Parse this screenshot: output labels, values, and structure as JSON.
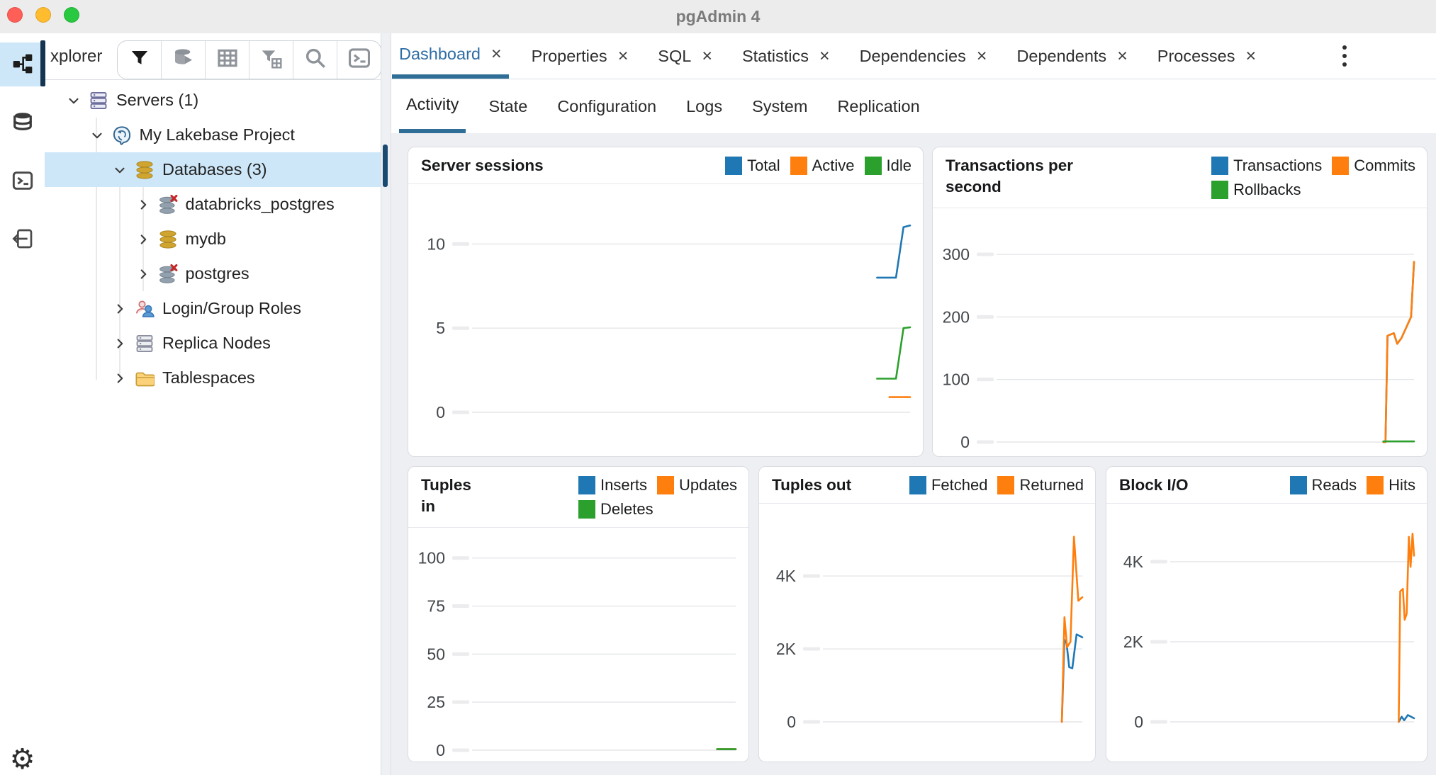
{
  "window": {
    "title": "pgAdmin 4"
  },
  "rail": {
    "top_icons": [
      {
        "name": "object-explorer-icon",
        "active": true
      },
      {
        "name": "rail-database-icon",
        "active": false
      },
      {
        "name": "rail-terminal-icon",
        "active": false
      },
      {
        "name": "rail-extension-icon",
        "active": false
      }
    ],
    "bottom_icon": {
      "name": "gear-icon",
      "glyph": "⚙"
    }
  },
  "explorer": {
    "header_label": "xplorer",
    "toolbar": [
      {
        "name": "filter-icon"
      },
      {
        "name": "database-play-icon"
      },
      {
        "name": "grid-icon"
      },
      {
        "name": "filter-grid-icon"
      },
      {
        "name": "search-icon"
      },
      {
        "name": "terminal-box-icon"
      }
    ],
    "tree": [
      {
        "depth": 0,
        "chevron": "down",
        "icon": "servers-icon",
        "label": "Servers (1)"
      },
      {
        "depth": 1,
        "chevron": "down",
        "icon": "postgres-icon",
        "label": "My Lakebase Project"
      },
      {
        "depth": 2,
        "chevron": "down",
        "icon": "database-icon",
        "label": "Databases (3)",
        "selected": true
      },
      {
        "depth": 3,
        "chevron": "right",
        "icon": "database-off-icon",
        "label": "databricks_postgres"
      },
      {
        "depth": 3,
        "chevron": "right",
        "icon": "database-icon",
        "label": "mydb"
      },
      {
        "depth": 3,
        "chevron": "right",
        "icon": "database-off-icon",
        "label": "postgres"
      },
      {
        "depth": 2,
        "chevron": "right",
        "icon": "roles-icon",
        "label": "Login/Group Roles"
      },
      {
        "depth": 2,
        "chevron": "right",
        "icon": "replica-icon",
        "label": "Replica Nodes"
      },
      {
        "depth": 2,
        "chevron": "right",
        "icon": "tablespaces-icon",
        "label": "Tablespaces"
      }
    ]
  },
  "tabs": {
    "close_glyph": "×",
    "items": [
      {
        "label": "Dashboard",
        "active": true
      },
      {
        "label": "Properties",
        "active": false
      },
      {
        "label": "SQL",
        "active": false
      },
      {
        "label": "Statistics",
        "active": false
      },
      {
        "label": "Dependencies",
        "active": false
      },
      {
        "label": "Dependents",
        "active": false
      },
      {
        "label": "Processes",
        "active": false
      }
    ]
  },
  "subtabs": {
    "items": [
      {
        "label": "Activity",
        "active": true
      },
      {
        "label": "State",
        "active": false
      },
      {
        "label": "Configuration",
        "active": false
      },
      {
        "label": "Logs",
        "active": false
      },
      {
        "label": "System",
        "active": false
      },
      {
        "label": "Replication",
        "active": false
      }
    ]
  },
  "palette": {
    "blue": "#1f77b4",
    "orange": "#ff7f0e",
    "green": "#2ca02c",
    "accent": "#2f6e96"
  },
  "chart_data": [
    {
      "type": "line",
      "title": "Server sessions",
      "legend_rows": [
        [
          {
            "label": "Total",
            "color": "#1f77b4"
          },
          {
            "label": "Active",
            "color": "#ff7f0e"
          },
          {
            "label": "Idle",
            "color": "#2ca02c"
          }
        ]
      ],
      "ticks": [
        {
          "label": "10",
          "value": 10
        },
        {
          "label": "5",
          "value": 5
        },
        {
          "label": "0",
          "value": 0
        }
      ],
      "ylim": [
        0,
        13.3
      ],
      "series": [
        {
          "name": "Total",
          "color": "#1f77b4",
          "points": [
            [
              0.925,
              8
            ],
            [
              0.968,
              8
            ],
            [
              0.985,
              11
            ],
            [
              1.0,
              11.1
            ]
          ]
        },
        {
          "name": "Active",
          "color": "#ff7f0e",
          "points": [
            [
              0.953,
              0.9
            ],
            [
              1.0,
              0.9
            ]
          ]
        },
        {
          "name": "Idle",
          "color": "#2ca02c",
          "points": [
            [
              0.925,
              2
            ],
            [
              0.968,
              2
            ],
            [
              0.985,
              5
            ],
            [
              1.0,
              5.05
            ]
          ]
        }
      ]
    },
    {
      "type": "line",
      "title": "Transactions per second",
      "legend_rows": [
        [
          {
            "label": "Transactions",
            "color": "#1f77b4"
          },
          {
            "label": "Commits",
            "color": "#ff7f0e"
          }
        ],
        [
          {
            "label": "Rollbacks",
            "color": "#2ca02c"
          }
        ]
      ],
      "ticks": [
        {
          "label": "300",
          "value": 300
        },
        {
          "label": "200",
          "value": 200
        },
        {
          "label": "100",
          "value": 100
        },
        {
          "label": "0",
          "value": 0
        }
      ],
      "ylim": [
        0,
        368
      ],
      "series": [
        {
          "name": "Transactions",
          "color": "#1f77b4",
          "points": [
            [
              0.927,
              0
            ],
            [
              0.932,
              0
            ],
            [
              0.937,
              170
            ],
            [
              0.952,
              174
            ],
            [
              0.96,
              157
            ],
            [
              0.97,
              166
            ],
            [
              0.993,
              200
            ],
            [
              1.0,
              288
            ]
          ]
        },
        {
          "name": "Commits",
          "color": "#ff7f0e",
          "points": [
            [
              0.927,
              0
            ],
            [
              0.932,
              0
            ],
            [
              0.937,
              170
            ],
            [
              0.952,
              174
            ],
            [
              0.96,
              157
            ],
            [
              0.97,
              166
            ],
            [
              0.993,
              200
            ],
            [
              1.0,
              288
            ]
          ]
        },
        {
          "name": "Rollbacks",
          "color": "#2ca02c",
          "points": [
            [
              0.927,
              1
            ],
            [
              1.0,
              1
            ]
          ]
        }
      ]
    },
    {
      "type": "line",
      "title": "Tuples in",
      "legend_rows": [
        [
          {
            "label": "Inserts",
            "color": "#1f77b4"
          },
          {
            "label": "Updates",
            "color": "#ff7f0e"
          }
        ],
        [
          {
            "label": "Deletes",
            "color": "#2ca02c"
          }
        ]
      ],
      "ticks": [
        {
          "label": "100",
          "value": 100
        },
        {
          "label": "75",
          "value": 75
        },
        {
          "label": "50",
          "value": 50
        },
        {
          "label": "25",
          "value": 25
        },
        {
          "label": "0",
          "value": 0
        }
      ],
      "ylim": [
        0,
        115
      ],
      "series": [
        {
          "name": "Inserts",
          "color": "#1f77b4",
          "points": [
            [
              0.93,
              0.5
            ],
            [
              1.0,
              0.5
            ]
          ]
        },
        {
          "name": "Updates",
          "color": "#ff7f0e",
          "points": [
            [
              0.93,
              0.5
            ],
            [
              1.0,
              0.5
            ]
          ]
        },
        {
          "name": "Deletes",
          "color": "#2ca02c",
          "points": [
            [
              0.93,
              0.5
            ],
            [
              1.0,
              0.5
            ]
          ]
        }
      ]
    },
    {
      "type": "line",
      "title": "Tuples out",
      "legend_rows": [
        [
          {
            "label": "Fetched",
            "color": "#1f77b4"
          },
          {
            "label": "Returned",
            "color": "#ff7f0e"
          }
        ]
      ],
      "ticks": [
        {
          "label": "4K",
          "value": 4000
        },
        {
          "label": "2K",
          "value": 2000
        },
        {
          "label": "0",
          "value": 0
        }
      ],
      "ylim": [
        0,
        5906
      ],
      "series": [
        {
          "name": "Fetched",
          "color": "#1f77b4",
          "points": [
            [
              0.922,
              0
            ],
            [
              0.932,
              2250
            ],
            [
              0.94,
              2150
            ],
            [
              0.95,
              1500
            ],
            [
              0.962,
              1470
            ],
            [
              0.978,
              2400
            ],
            [
              1.0,
              2320
            ]
          ]
        },
        {
          "name": "Returned",
          "color": "#ff7f0e",
          "points": [
            [
              0.922,
              0
            ],
            [
              0.932,
              2870
            ],
            [
              0.942,
              2050
            ],
            [
              0.955,
              2200
            ],
            [
              0.968,
              5080
            ],
            [
              0.985,
              3320
            ],
            [
              1.0,
              3420
            ]
          ]
        }
      ]
    },
    {
      "type": "line",
      "title": "Block I/O",
      "legend_rows": [
        [
          {
            "label": "Reads",
            "color": "#1f77b4"
          },
          {
            "label": "Hits",
            "color": "#ff7f0e"
          }
        ]
      ],
      "ticks": [
        {
          "label": "4K",
          "value": 4000
        },
        {
          "label": "2K",
          "value": 2000
        },
        {
          "label": "0",
          "value": 0
        }
      ],
      "ylim": [
        0,
        5378
      ],
      "series": [
        {
          "name": "Reads",
          "color": "#1f77b4",
          "points": [
            [
              0.938,
              0
            ],
            [
              0.95,
              130
            ],
            [
              0.96,
              40
            ],
            [
              0.975,
              170
            ],
            [
              1.0,
              90
            ]
          ]
        },
        {
          "name": "Hits",
          "color": "#ff7f0e",
          "points": [
            [
              0.938,
              0
            ],
            [
              0.944,
              3260
            ],
            [
              0.955,
              3320
            ],
            [
              0.962,
              2550
            ],
            [
              0.97,
              2700
            ],
            [
              0.979,
              4620
            ],
            [
              0.986,
              3870
            ],
            [
              0.994,
              4700
            ],
            [
              1.0,
              4150
            ]
          ]
        }
      ]
    }
  ]
}
